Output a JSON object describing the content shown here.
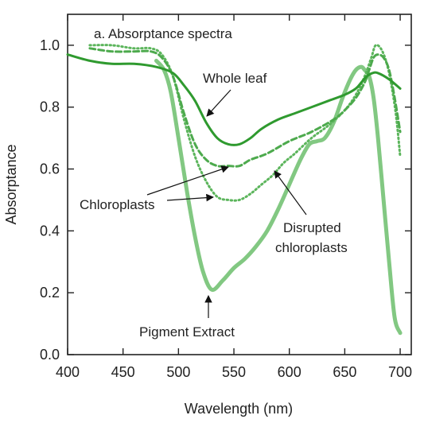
{
  "chart_data": {
    "type": "line",
    "title": "a. Absorptance spectra",
    "xlabel": "Wavelength (nm)",
    "ylabel": "Absorptance",
    "xlim": [
      400,
      710
    ],
    "ylim": [
      0.0,
      1.1
    ],
    "xticks": [
      400,
      450,
      500,
      550,
      600,
      650,
      700
    ],
    "xtick_labels": [
      "400",
      "450",
      "500",
      "550",
      "600",
      "650",
      "700"
    ],
    "yticks": [
      0.0,
      0.2,
      0.4,
      0.6,
      0.8,
      1.0
    ],
    "ytick_labels": [
      "0.0",
      "0.2",
      "0.4",
      "0.6",
      "0.8",
      "1.0"
    ],
    "grid": false,
    "legend": "none",
    "colors": {
      "whole_leaf": "#2f9a2f",
      "chloroplasts": "#4daa4d",
      "disrupted": "#5cb55c",
      "pigment": "#82c882"
    },
    "series": [
      {
        "key": "whole_leaf",
        "style": "solid",
        "width": 3,
        "x": [
          400,
          420,
          440,
          460,
          480,
          495,
          505,
          515,
          525,
          535,
          545,
          555,
          565,
          575,
          590,
          605,
          620,
          635,
          650,
          660,
          665,
          670,
          675,
          680,
          690,
          700
        ],
        "y": [
          0.97,
          0.95,
          0.94,
          0.94,
          0.93,
          0.91,
          0.87,
          0.82,
          0.75,
          0.7,
          0.68,
          0.68,
          0.7,
          0.73,
          0.76,
          0.78,
          0.8,
          0.82,
          0.84,
          0.86,
          0.88,
          0.9,
          0.91,
          0.91,
          0.89,
          0.86
        ]
      },
      {
        "key": "chloroplasts",
        "style": "dashed",
        "width": 3,
        "x": [
          420,
          440,
          460,
          475,
          485,
          495,
          505,
          515,
          525,
          535,
          545,
          555,
          565,
          580,
          600,
          620,
          640,
          650,
          660,
          668,
          672,
          676,
          680,
          685,
          690,
          695,
          700
        ],
        "y": [
          0.99,
          0.98,
          0.98,
          0.98,
          0.96,
          0.9,
          0.78,
          0.68,
          0.63,
          0.61,
          0.61,
          0.61,
          0.63,
          0.65,
          0.69,
          0.72,
          0.76,
          0.79,
          0.83,
          0.88,
          0.92,
          0.96,
          0.97,
          0.96,
          0.92,
          0.83,
          0.72
        ]
      },
      {
        "key": "disrupted",
        "style": "dotted",
        "width": 3,
        "x": [
          420,
          440,
          460,
          475,
          485,
          495,
          505,
          515,
          525,
          535,
          545,
          555,
          565,
          575,
          585,
          595,
          605,
          620,
          635,
          650,
          660,
          668,
          674,
          678,
          684,
          690,
          696,
          700
        ],
        "y": [
          1.0,
          1.0,
          0.99,
          0.99,
          0.97,
          0.9,
          0.76,
          0.64,
          0.56,
          0.51,
          0.5,
          0.5,
          0.52,
          0.55,
          0.58,
          0.62,
          0.65,
          0.7,
          0.74,
          0.79,
          0.84,
          0.9,
          0.96,
          1.0,
          0.98,
          0.91,
          0.78,
          0.64
        ]
      },
      {
        "key": "pigment",
        "style": "solid",
        "width": 5,
        "x": [
          480,
          487,
          493,
          500,
          508,
          515,
          522,
          530,
          540,
          550,
          560,
          570,
          580,
          590,
          600,
          610,
          618,
          625,
          632,
          640,
          648,
          655,
          660,
          665,
          668,
          672,
          676,
          680,
          685,
          690,
          695,
          700
        ],
        "y": [
          0.95,
          0.92,
          0.85,
          0.7,
          0.52,
          0.38,
          0.27,
          0.21,
          0.24,
          0.28,
          0.31,
          0.35,
          0.4,
          0.47,
          0.55,
          0.63,
          0.68,
          0.69,
          0.7,
          0.75,
          0.83,
          0.89,
          0.92,
          0.93,
          0.92,
          0.9,
          0.83,
          0.7,
          0.5,
          0.3,
          0.12,
          0.07
        ]
      }
    ],
    "annotations": [
      {
        "text": "Whole leaf",
        "key": "ann_whole_leaf"
      },
      {
        "text": "Chloroplasts",
        "key": "ann_chloroplasts"
      },
      {
        "text": "Disrupted",
        "key": "ann_disrupted_1"
      },
      {
        "text": "chloroplasts",
        "key": "ann_disrupted_2"
      },
      {
        "text": "Pigment Extract",
        "key": "ann_pigment"
      }
    ]
  }
}
